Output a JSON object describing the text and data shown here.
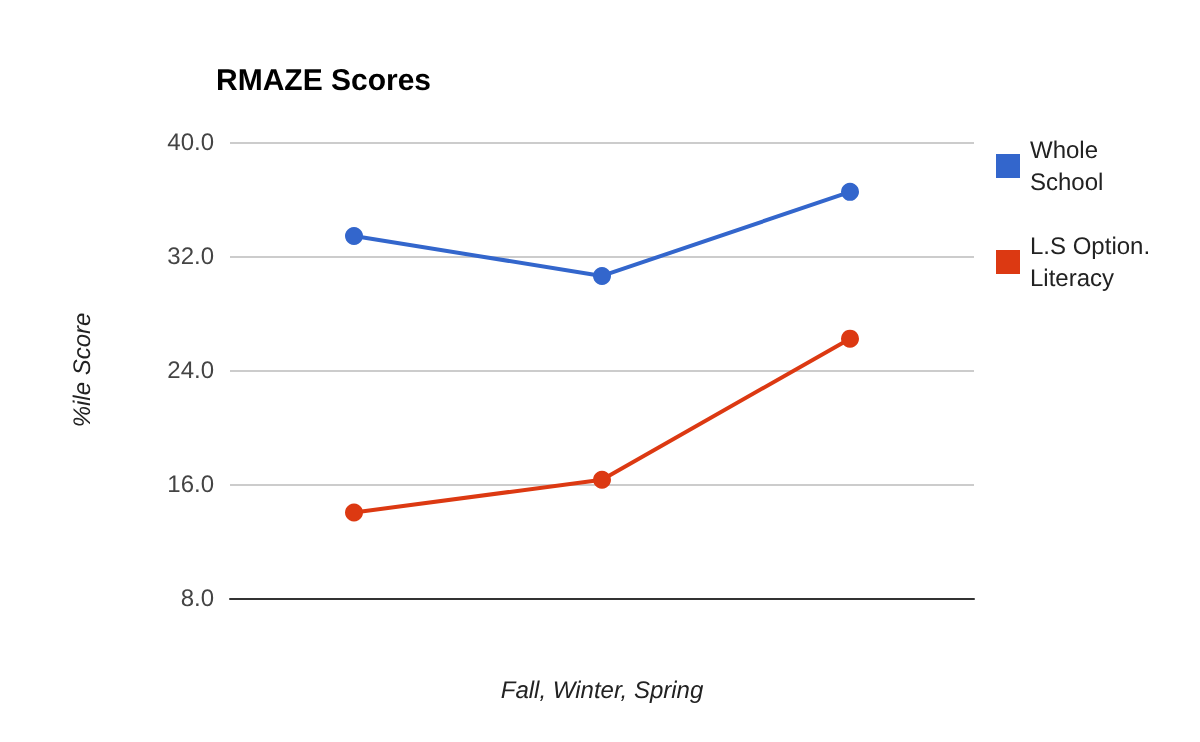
{
  "chart_data": {
    "type": "line",
    "title": "RMAZE Scores",
    "xlabel": "Fall, Winter, Spring",
    "ylabel": "%ile Score",
    "categories": [
      null,
      null,
      null
    ],
    "series": [
      {
        "name": "Whole School",
        "color": "#3366cc",
        "values": [
          33.4,
          30.6,
          36.5
        ]
      },
      {
        "name": "L.S Option. Literacy",
        "color": "#dc3912",
        "values": [
          14.0,
          16.3,
          26.2
        ]
      }
    ],
    "ylim": [
      8,
      40
    ],
    "yticks": [
      {
        "value": 8,
        "label": "8.0"
      },
      {
        "value": 16,
        "label": "16.0"
      },
      {
        "value": 24,
        "label": "24.0"
      },
      {
        "value": 32,
        "label": "32.0"
      },
      {
        "value": 40,
        "label": "40.0"
      }
    ],
    "grid": "y",
    "legend": "top right",
    "marker": "circle",
    "line_style": "solid"
  }
}
